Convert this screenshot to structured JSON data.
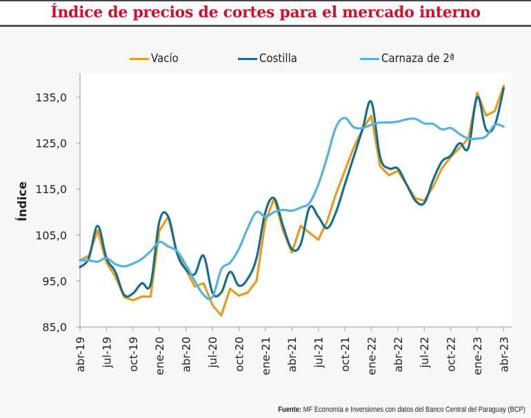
{
  "title": "Índice de precios de cortes para el mercado interno",
  "source": {
    "label": "Fuente:",
    "text": "MF Economía e Inversiones con datos del Banco Central del Paraguay (BCP)"
  },
  "chart_data": {
    "type": "line",
    "title": "Índice de precios de cortes para el mercado interno",
    "xlabel": "",
    "ylabel": "Índice",
    "ylim": [
      85,
      137
    ],
    "yticks": [
      85,
      95,
      105,
      115,
      125,
      135
    ],
    "ytick_labels": [
      "85,0",
      "95,0",
      "105,0",
      "115,0",
      "125,0",
      "135,0"
    ],
    "xtick_labels": [
      "abr-19",
      "jul-19",
      "oct-19",
      "ene-20",
      "abr-20",
      "jul-20",
      "oct-20",
      "ene-21",
      "abr-21",
      "jul-21",
      "oct-21",
      "ene-22",
      "abr-22",
      "jul-22",
      "oct-22",
      "ene-23",
      "abr-23"
    ],
    "xtick_step_months": 3,
    "x_months_from_start": [
      0,
      1,
      2,
      3,
      4,
      5,
      6,
      7,
      8,
      9,
      10,
      11,
      12,
      13,
      14,
      15,
      16,
      17,
      18,
      19,
      20,
      21,
      22,
      23,
      24,
      25,
      26,
      27,
      28,
      29,
      30,
      31,
      32,
      33,
      34,
      35,
      36,
      37,
      38,
      39,
      40,
      41,
      42,
      43,
      44,
      45,
      46,
      47,
      48
    ],
    "grid": false,
    "legend_position": "top",
    "series": [
      {
        "name": "Vacío",
        "color": "#e89a1c",
        "values": [
          99.5,
          100.5,
          106,
          99,
          96,
          91.5,
          90.8,
          91.6,
          91.6,
          106,
          109,
          101,
          97.5,
          93.8,
          94.5,
          89.8,
          87.5,
          93.3,
          91.8,
          92.5,
          95,
          108,
          113,
          106,
          101.2,
          107,
          105.5,
          104,
          108,
          114,
          119,
          124,
          128,
          131,
          120,
          118,
          119,
          116,
          113,
          112.5,
          115.5,
          119.5,
          122,
          124,
          126,
          136,
          131,
          132,
          137.5
        ]
      },
      {
        "name": "Costilla",
        "color": "#136d8e",
        "values": [
          98,
          100,
          107,
          100,
          97,
          92,
          92.3,
          94.5,
          94.3,
          108,
          109,
          101,
          97.5,
          96.5,
          100.5,
          92.5,
          92.5,
          97,
          94,
          95.5,
          100,
          110,
          113,
          107,
          102,
          103,
          111,
          109,
          106.5,
          110,
          116,
          122,
          128,
          134,
          122,
          119.5,
          119.5,
          116,
          112.5,
          112,
          117,
          121,
          122.3,
          125,
          124,
          135,
          128,
          129,
          137
        ]
      },
      {
        "name": "Carnaza de 2ª",
        "color": "#53b2e3",
        "values": [
          99.5,
          99.5,
          99.2,
          100,
          98.7,
          98.2,
          98.8,
          99.8,
          101.5,
          103.5,
          102.5,
          101.5,
          98.5,
          95,
          92,
          91.5,
          97.5,
          99,
          102,
          106.5,
          110,
          109,
          110,
          110.5,
          110.3,
          111,
          112,
          116,
          122,
          128.5,
          130.5,
          128.5,
          128.3,
          129,
          129.5,
          129.5,
          129.7,
          130.2,
          130.3,
          129.3,
          129.2,
          128,
          128.3,
          127,
          126,
          126,
          126.5,
          129,
          128.6
        ]
      }
    ]
  }
}
